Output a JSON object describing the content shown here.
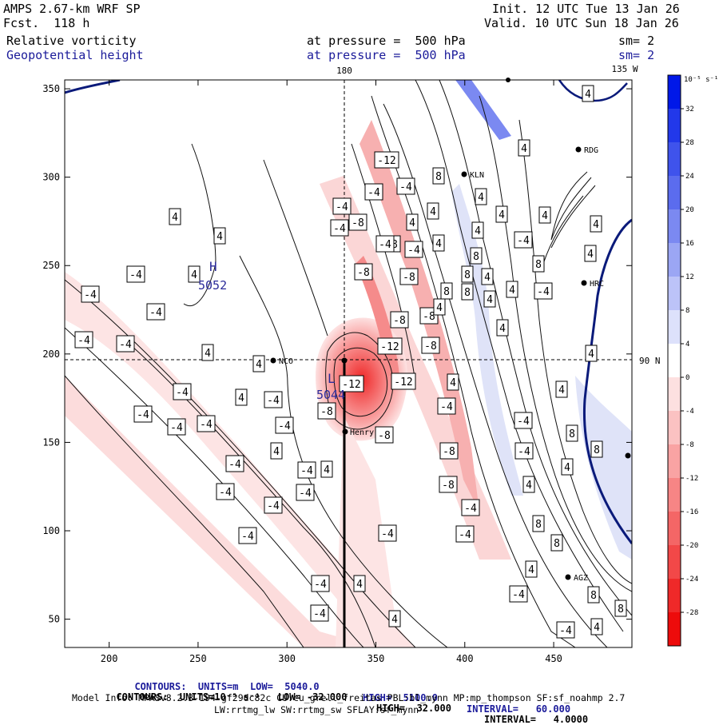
{
  "header": {
    "model": "AMPS 2.67-km WRF SP",
    "fcst": "Fcst.  118 h",
    "init": "Init. 12 UTC Tue 13 Jan 26",
    "valid": "Valid. 10 UTC Sun 18 Jan 26",
    "field1": "Relative vorticity",
    "field2": "Geopotential height",
    "pressure1": "at pressure =  500 hPa",
    "pressure2": "at pressure =  500 hPa",
    "sm1": "sm= 2",
    "sm2": "sm= 2"
  },
  "colors": {
    "blue_text": "#1b1b9a",
    "height_contour": "#0a1a7a",
    "neg_shade": "#f3c9c9",
    "neg_shade_strong": "#e98d8d",
    "pos_shade": "#d9def6"
  },
  "map_labels": {
    "top_lon_180": "180",
    "top_lon_135w": "135 W",
    "right_lat_90n": "90 N",
    "high_letter": "H",
    "high_value": "5052",
    "low_letter": "L",
    "low_value": "5044",
    "stations": [
      "NCO",
      "Henry",
      "RDG",
      "KLN",
      "HRC",
      "AGZ"
    ]
  },
  "chart_data": {
    "type": "heatmap",
    "title": "Relative vorticity / Geopotential height at 500 hPa",
    "x_ticks": [
      200,
      250,
      300,
      350,
      400,
      450
    ],
    "y_ticks": [
      50,
      100,
      150,
      200,
      250,
      300,
      350
    ],
    "xlim": [
      175,
      494
    ],
    "ylim": [
      34,
      355
    ],
    "colorbar": {
      "unit_label": "10⁻⁵ s⁻¹",
      "levels": [
        32,
        28,
        24,
        20,
        16,
        12,
        8,
        4,
        0,
        -4,
        -8,
        -12,
        -16,
        -20,
        -24,
        -28,
        -32
      ],
      "colors": [
        "#0018e8",
        "#2238ea",
        "#3f53ec",
        "#5b6cee",
        "#7b89f1",
        "#9ba6f4",
        "#bcc3f8",
        "#dde1fb",
        "#ffffff",
        "#fde0e0",
        "#fbc2c2",
        "#f9a3a3",
        "#f78585",
        "#f46666",
        "#f24848",
        "#ef2929",
        "#ed0b0b"
      ]
    },
    "contour_labels": [
      {
        "x": 428,
        "y": 258,
        "t": "-4"
      },
      {
        "x": 425,
        "y": 285,
        "t": "-4"
      },
      {
        "x": 448,
        "y": 278,
        "t": "-8"
      },
      {
        "x": 455,
        "y": 340,
        "t": "-8"
      },
      {
        "x": 468,
        "y": 240,
        "t": "-4"
      },
      {
        "x": 490,
        "y": 305,
        "t": "-8"
      },
      {
        "x": 484,
        "y": 200,
        "t": "-12"
      },
      {
        "x": 508,
        "y": 233,
        "t": "-4"
      },
      {
        "x": 482,
        "y": 305,
        "t": "-4"
      },
      {
        "x": 518,
        "y": 312,
        "t": "-4"
      },
      {
        "x": 512,
        "y": 346,
        "t": "-8"
      },
      {
        "x": 500,
        "y": 400,
        "t": "-8"
      },
      {
        "x": 537,
        "y": 395,
        "t": "-8"
      },
      {
        "x": 539,
        "y": 432,
        "t": "-8"
      },
      {
        "x": 488,
        "y": 433,
        "t": "-12"
      },
      {
        "x": 505,
        "y": 477,
        "t": "-12"
      },
      {
        "x": 440,
        "y": 480,
        "t": "-12"
      },
      {
        "x": 409,
        "y": 514,
        "t": "-8"
      },
      {
        "x": 481,
        "y": 544,
        "t": "-8"
      },
      {
        "x": 559,
        "y": 508,
        "t": "-4"
      },
      {
        "x": 562,
        "y": 564,
        "t": "-8"
      },
      {
        "x": 561,
        "y": 606,
        "t": "-8"
      },
      {
        "x": 589,
        "y": 635,
        "t": "-4"
      },
      {
        "x": 582,
        "y": 668,
        "t": "-4"
      },
      {
        "x": 485,
        "y": 667,
        "t": "-4"
      },
      {
        "x": 356,
        "y": 532,
        "t": "-4"
      },
      {
        "x": 342,
        "y": 500,
        "t": "-4"
      },
      {
        "x": 384,
        "y": 588,
        "t": "-4"
      },
      {
        "x": 382,
        "y": 616,
        "t": "-4"
      },
      {
        "x": 342,
        "y": 632,
        "t": "-4"
      },
      {
        "x": 310,
        "y": 670,
        "t": "-4"
      },
      {
        "x": 401,
        "y": 730,
        "t": "-4"
      },
      {
        "x": 400,
        "y": 767,
        "t": "-4"
      },
      {
        "x": 294,
        "y": 580,
        "t": "-4"
      },
      {
        "x": 282,
        "y": 615,
        "t": "-4"
      },
      {
        "x": 258,
        "y": 530,
        "t": "-4"
      },
      {
        "x": 221,
        "y": 534,
        "t": "-4"
      },
      {
        "x": 228,
        "y": 490,
        "t": "-4"
      },
      {
        "x": 179,
        "y": 518,
        "t": "-4"
      },
      {
        "x": 157,
        "y": 430,
        "t": "-4"
      },
      {
        "x": 105,
        "y": 425,
        "t": "-4"
      },
      {
        "x": 113,
        "y": 368,
        "t": "-4"
      },
      {
        "x": 170,
        "y": 343,
        "t": "-4"
      },
      {
        "x": 195,
        "y": 390,
        "t": "-4"
      },
      {
        "x": 655,
        "y": 300,
        "t": "-4"
      },
      {
        "x": 680,
        "y": 364,
        "t": "-4"
      },
      {
        "x": 655,
        "y": 526,
        "t": "-4"
      },
      {
        "x": 656,
        "y": 564,
        "t": "-4"
      },
      {
        "x": 649,
        "y": 743,
        "t": "-4"
      },
      {
        "x": 708,
        "y": 788,
        "t": "-4"
      },
      {
        "x": 219,
        "y": 271,
        "t": "4"
      },
      {
        "x": 275,
        "y": 295,
        "t": "4"
      },
      {
        "x": 243,
        "y": 343,
        "t": "4"
      },
      {
        "x": 260,
        "y": 441,
        "t": "4"
      },
      {
        "x": 324,
        "y": 455,
        "t": "4"
      },
      {
        "x": 302,
        "y": 497,
        "t": "4"
      },
      {
        "x": 346,
        "y": 564,
        "t": "4"
      },
      {
        "x": 409,
        "y": 587,
        "t": "4"
      },
      {
        "x": 450,
        "y": 730,
        "t": "4"
      },
      {
        "x": 494,
        "y": 774,
        "t": "4"
      },
      {
        "x": 516,
        "y": 278,
        "t": "4"
      },
      {
        "x": 542,
        "y": 264,
        "t": "4"
      },
      {
        "x": 549,
        "y": 304,
        "t": "4"
      },
      {
        "x": 550,
        "y": 384,
        "t": "4"
      },
      {
        "x": 567,
        "y": 478,
        "t": "4"
      },
      {
        "x": 602,
        "y": 246,
        "t": "4"
      },
      {
        "x": 628,
        "y": 268,
        "t": "4"
      },
      {
        "x": 598,
        "y": 288,
        "t": "4"
      },
      {
        "x": 610,
        "y": 346,
        "t": "4"
      },
      {
        "x": 613,
        "y": 374,
        "t": "4"
      },
      {
        "x": 629,
        "y": 410,
        "t": "4"
      },
      {
        "x": 641,
        "y": 362,
        "t": "4"
      },
      {
        "x": 656,
        "y": 185,
        "t": "4"
      },
      {
        "x": 682,
        "y": 269,
        "t": "4"
      },
      {
        "x": 736,
        "y": 117,
        "t": "4"
      },
      {
        "x": 746,
        "y": 280,
        "t": "4"
      },
      {
        "x": 739,
        "y": 317,
        "t": "4"
      },
      {
        "x": 740,
        "y": 442,
        "t": "4"
      },
      {
        "x": 703,
        "y": 487,
        "t": "4"
      },
      {
        "x": 710,
        "y": 584,
        "t": "4"
      },
      {
        "x": 662,
        "y": 606,
        "t": "4"
      },
      {
        "x": 665,
        "y": 712,
        "t": "4"
      },
      {
        "x": 747,
        "y": 784,
        "t": "4"
      },
      {
        "x": 549,
        "y": 220,
        "t": "8"
      },
      {
        "x": 596,
        "y": 320,
        "t": "8"
      },
      {
        "x": 585,
        "y": 343,
        "t": "8"
      },
      {
        "x": 559,
        "y": 364,
        "t": "8"
      },
      {
        "x": 585,
        "y": 365,
        "t": "8"
      },
      {
        "x": 674,
        "y": 330,
        "t": "8"
      },
      {
        "x": 716,
        "y": 542,
        "t": "8"
      },
      {
        "x": 747,
        "y": 562,
        "t": "8"
      },
      {
        "x": 674,
        "y": 655,
        "t": "8"
      },
      {
        "x": 697,
        "y": 679,
        "t": "8"
      },
      {
        "x": 743,
        "y": 744,
        "t": "8"
      },
      {
        "x": 777,
        "y": 761,
        "t": "8"
      }
    ]
  },
  "footer": {
    "line1_prefix": "CONTOURS:  UNITS=m  LOW=  5040.0",
    "line1_high": "HIGH=  5100.0",
    "line1_interval": "INTERVAL=   60.000",
    "line2_prefix": "CONTOURS:  UNITS=10⁻⁵ s⁻¹   LOW= -32.000",
    "line2_high": "HIGH=  32.000",
    "line2_interval": "INTERVAL=   4.0000",
    "model_info": "Model Info: MPASv8.2.3-194-gf29dc82c CU:cu_grell_freitas PBL:bl_mynn MP:mp_thompson SF:sf_noahmp 2.7",
    "physics": "LW:rrtmg_lw SW:rrtmg_sw SFLAY:sf_mynn"
  }
}
